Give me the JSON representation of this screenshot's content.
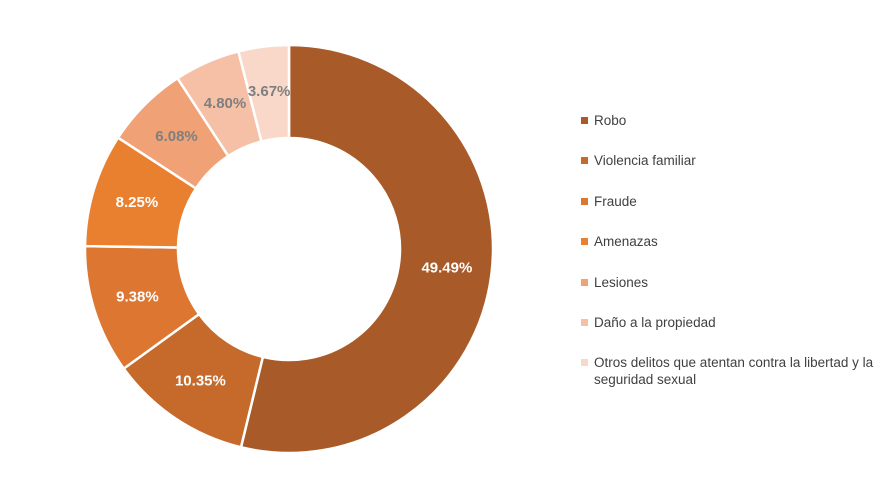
{
  "chart_data": {
    "type": "donut",
    "title": "",
    "categories": [
      "Robo",
      "Violencia familiar",
      "Fraude",
      "Amenazas",
      "Lesiones",
      "Daño a la propiedad",
      "Otros delitos que atentan contra la libertad y la seguridad sexual"
    ],
    "values": [
      49.49,
      10.35,
      9.38,
      8.25,
      6.08,
      4.8,
      3.67
    ],
    "labels": [
      "49.49%",
      "10.35%",
      "9.38%",
      "8.25%",
      "6.08%",
      "4.80%",
      "3.67%"
    ],
    "colors": [
      "#A85A28",
      "#C66A2C",
      "#DD7630",
      "#E9802F",
      "#F0A175",
      "#F5C0A6",
      "#F9D8C9"
    ],
    "label_text_colors": [
      "#FFFFFF",
      "#FFFFFF",
      "#FFFFFF",
      "#FFFFFF",
      "#7F7F7F",
      "#7F7F7F",
      "#7F7F7F"
    ],
    "legend_position": "right",
    "legend_text_color": "#404040",
    "background_color": "#FFFFFF",
    "start_angle_deg": 0,
    "direction": "clockwise",
    "normalized_to_sum": true,
    "grid": false
  }
}
